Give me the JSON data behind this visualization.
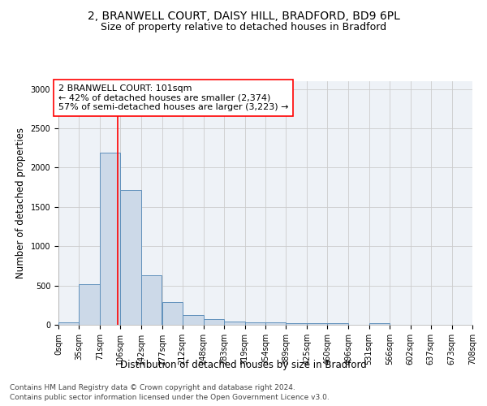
{
  "title_line1": "2, BRANWELL COURT, DAISY HILL, BRADFORD, BD9 6PL",
  "title_line2": "Size of property relative to detached houses in Bradford",
  "xlabel": "Distribution of detached houses by size in Bradford",
  "ylabel": "Number of detached properties",
  "footer_line1": "Contains HM Land Registry data © Crown copyright and database right 2024.",
  "footer_line2": "Contains public sector information licensed under the Open Government Licence v3.0.",
  "bar_edges": [
    0,
    35,
    71,
    106,
    142,
    177,
    212,
    248,
    283,
    319,
    354,
    389,
    425,
    460,
    496,
    531,
    566,
    602,
    637,
    673,
    708
  ],
  "bar_heights": [
    30,
    520,
    2190,
    1720,
    635,
    290,
    120,
    75,
    40,
    35,
    35,
    25,
    25,
    20,
    5,
    20,
    5,
    5,
    5,
    5
  ],
  "bar_color": "#ccd9e8",
  "bar_edgecolor": "#6090bb",
  "bar_linewidth": 0.7,
  "vline_x": 101,
  "vline_color": "red",
  "vline_linewidth": 1.2,
  "annotation_text": "2 BRANWELL COURT: 101sqm\n← 42% of detached houses are smaller (2,374)\n57% of semi-detached houses are larger (3,223) →",
  "annotation_box_edgecolor": "red",
  "annotation_box_facecolor": "white",
  "ylim": [
    0,
    3100
  ],
  "xlim": [
    0,
    708
  ],
  "yticks": [
    0,
    500,
    1000,
    1500,
    2000,
    2500,
    3000
  ],
  "xtick_labels": [
    "0sqm",
    "35sqm",
    "71sqm",
    "106sqm",
    "142sqm",
    "177sqm",
    "212sqm",
    "248sqm",
    "283sqm",
    "319sqm",
    "354sqm",
    "389sqm",
    "425sqm",
    "460sqm",
    "496sqm",
    "531sqm",
    "566sqm",
    "602sqm",
    "637sqm",
    "673sqm",
    "708sqm"
  ],
  "grid_color": "#cccccc",
  "background_color": "#eef2f7",
  "title_fontsize": 10,
  "subtitle_fontsize": 9,
  "axis_label_fontsize": 8.5,
  "tick_fontsize": 7,
  "annotation_fontsize": 8,
  "footer_fontsize": 6.5
}
